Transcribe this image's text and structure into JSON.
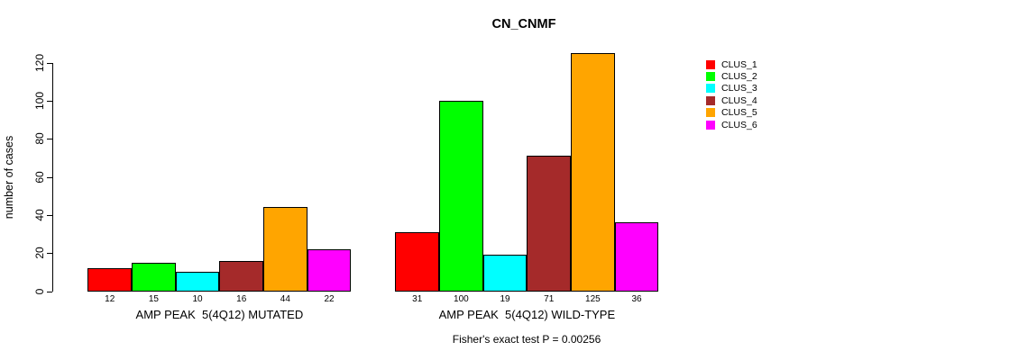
{
  "chart_data": {
    "type": "bar",
    "title": "CN_CNMF",
    "ylabel": "number of cases",
    "ylim": [
      0,
      130
    ],
    "yticks": [
      0,
      20,
      40,
      60,
      80,
      100,
      120
    ],
    "grid": false,
    "legend_position": "top-right",
    "bar_border_color": "#000000",
    "categories": [
      "AMP PEAK  5(4Q12) MUTATED",
      "AMP PEAK  5(4Q12) WILD-TYPE"
    ],
    "series": [
      {
        "name": "CLUS_1",
        "color": "#ff0000",
        "values": [
          12,
          31
        ]
      },
      {
        "name": "CLUS_2",
        "color": "#00ff00",
        "values": [
          15,
          100
        ]
      },
      {
        "name": "CLUS_3",
        "color": "#00ffff",
        "values": [
          10,
          19
        ]
      },
      {
        "name": "CLUS_4",
        "color": "#a52a2a",
        "values": [
          16,
          71
        ]
      },
      {
        "name": "CLUS_5",
        "color": "#ffa500",
        "values": [
          44,
          125
        ]
      },
      {
        "name": "CLUS_6",
        "color": "#ff00ff",
        "values": [
          22,
          36
        ]
      }
    ],
    "bar_value_labels_shown": true,
    "footer": "Fisher's exact test P = 0.00256"
  }
}
